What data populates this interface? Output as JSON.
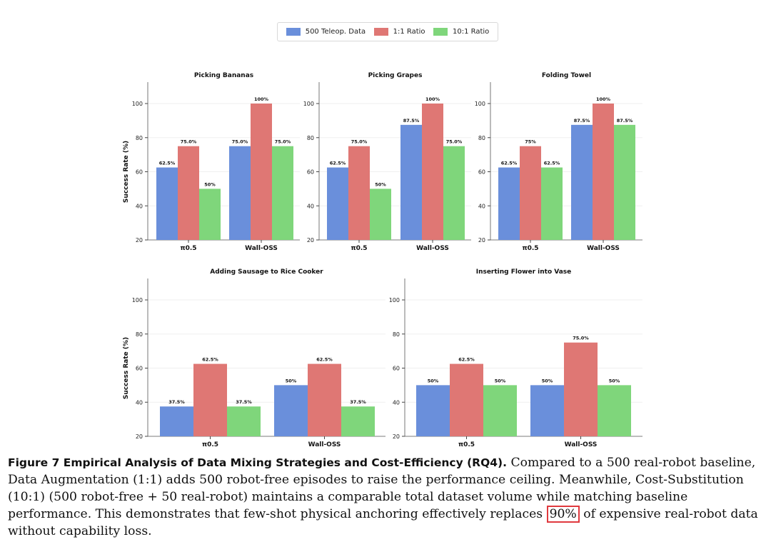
{
  "legend": {
    "items": [
      {
        "label": "500 Teleop. Data",
        "color": "#6a8fdb"
      },
      {
        "label": "1:1 Ratio",
        "color": "#df7774"
      },
      {
        "label": "10:1 Ratio",
        "color": "#7fd67b"
      }
    ]
  },
  "chart_data": [
    {
      "type": "bar",
      "title": "Picking Bananas",
      "ylabel": "Success Rate (%)",
      "ylim": [
        20,
        110
      ],
      "yticks": [
        20,
        40,
        60,
        80,
        100
      ],
      "categories": [
        "π0.5",
        "Wall-OSS"
      ],
      "series": [
        {
          "name": "500 Teleop. Data",
          "values": [
            62.5,
            75.0
          ],
          "labels": [
            "62.5%",
            "75.0%"
          ]
        },
        {
          "name": "1:1 Ratio",
          "values": [
            75.0,
            100
          ],
          "labels": [
            "75.0%",
            "100%"
          ]
        },
        {
          "name": "10:1 Ratio",
          "values": [
            50,
            75.0
          ],
          "labels": [
            "50%",
            "75.0%"
          ]
        }
      ]
    },
    {
      "type": "bar",
      "title": "Picking Grapes",
      "ylabel": "",
      "ylim": [
        20,
        110
      ],
      "yticks": [
        20,
        40,
        60,
        80,
        100
      ],
      "categories": [
        "π0.5",
        "Wall-OSS"
      ],
      "series": [
        {
          "name": "500 Teleop. Data",
          "values": [
            62.5,
            87.5
          ],
          "labels": [
            "62.5%",
            "87.5%"
          ]
        },
        {
          "name": "1:1 Ratio",
          "values": [
            75.0,
            100
          ],
          "labels": [
            "75.0%",
            "100%"
          ]
        },
        {
          "name": "10:1 Ratio",
          "values": [
            50,
            75.0
          ],
          "labels": [
            "50%",
            "75.0%"
          ]
        }
      ]
    },
    {
      "type": "bar",
      "title": "Folding Towel",
      "ylabel": "",
      "ylim": [
        20,
        110
      ],
      "yticks": [
        20,
        40,
        60,
        80,
        100
      ],
      "categories": [
        "π0.5",
        "Wall-OSS"
      ],
      "series": [
        {
          "name": "500 Teleop. Data",
          "values": [
            62.5,
            87.5
          ],
          "labels": [
            "62.5%",
            "87.5%"
          ]
        },
        {
          "name": "1:1 Ratio",
          "values": [
            75,
            100
          ],
          "labels": [
            "75%",
            "100%"
          ]
        },
        {
          "name": "10:1 Ratio",
          "values": [
            62.5,
            87.5
          ],
          "labels": [
            "62.5%",
            "87.5%"
          ]
        }
      ]
    },
    {
      "type": "bar",
      "title": "Adding Sausage to Rice Cooker",
      "ylabel": "Success Rate (%)",
      "ylim": [
        20,
        110
      ],
      "yticks": [
        20,
        40,
        60,
        80,
        100
      ],
      "categories": [
        "π0.5",
        "Wall-OSS"
      ],
      "series": [
        {
          "name": "500 Teleop. Data",
          "values": [
            37.5,
            50
          ],
          "labels": [
            "37.5%",
            "50%"
          ]
        },
        {
          "name": "1:1 Ratio",
          "values": [
            62.5,
            62.5
          ],
          "labels": [
            "62.5%",
            "62.5%"
          ]
        },
        {
          "name": "10:1 Ratio",
          "values": [
            37.5,
            37.5
          ],
          "labels": [
            "37.5%",
            "37.5%"
          ]
        }
      ]
    },
    {
      "type": "bar",
      "title": "Inserting Flower into Vase",
      "ylabel": "",
      "ylim": [
        20,
        110
      ],
      "yticks": [
        20,
        40,
        60,
        80,
        100
      ],
      "categories": [
        "π0.5",
        "Wall-OSS"
      ],
      "series": [
        {
          "name": "500 Teleop. Data",
          "values": [
            50,
            50
          ],
          "labels": [
            "50%",
            "50%"
          ]
        },
        {
          "name": "1:1 Ratio",
          "values": [
            62.5,
            75.0
          ],
          "labels": [
            "62.5%",
            "75.0%"
          ]
        },
        {
          "name": "10:1 Ratio",
          "values": [
            50,
            50
          ],
          "labels": [
            "50%",
            "50%"
          ]
        }
      ]
    }
  ],
  "caption": {
    "label": "Figure 7  Empirical Analysis of Data Mixing Strategies and Cost-Efficiency (RQ4).",
    "text_before": " Compared to a 500 real-robot baseline, Data Augmentation (1:1) adds 500 robot-free episodes to raise the performance ceiling. Meanwhile, Cost-Substitution (10:1) (500 robot-free + 50 real-robot) maintains a comparable total dataset volume while matching baseline performance. This demonstrates that few-shot physical anchoring effectively replaces ",
    "highlight": "90%",
    "text_after": " of expensive real-robot data without capability loss."
  }
}
